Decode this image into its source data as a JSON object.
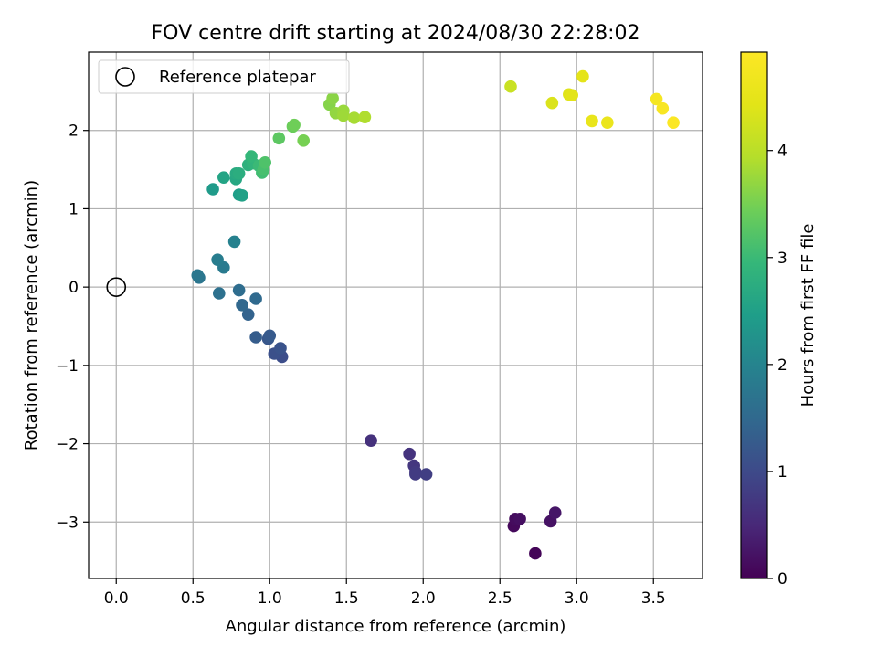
{
  "chart_data": {
    "type": "scatter",
    "title": "FOV centre drift starting at 2024/08/30 22:28:02",
    "xlabel": "Angular distance from reference (arcmin)",
    "ylabel": "Rotation from reference (arcmin)",
    "xlim": [
      -0.18,
      3.82
    ],
    "ylim": [
      -3.72,
      3.0
    ],
    "xticks": [
      0.0,
      0.5,
      1.0,
      1.5,
      2.0,
      2.5,
      3.0,
      3.5
    ],
    "xtick_labels": [
      "0.0",
      "0.5",
      "1.0",
      "1.5",
      "2.0",
      "2.5",
      "3.0",
      "3.5"
    ],
    "yticks": [
      -3,
      -2,
      -1,
      0,
      1,
      2
    ],
    "ytick_labels": [
      "−3",
      "−2",
      "−1",
      "0",
      "1",
      "2"
    ],
    "grid": true,
    "legend": {
      "location": "upper-left",
      "entries": [
        "Reference platepar"
      ]
    },
    "reference_point": {
      "name": "Reference platepar",
      "x": 0.0,
      "y": 0.0
    },
    "colorbar": {
      "label": "Hours from first FF file",
      "colormap": "viridis",
      "range": [
        0,
        4.92
      ],
      "ticks": [
        0,
        1,
        2,
        3,
        4
      ],
      "tick_labels": [
        "0",
        "1",
        "2",
        "3",
        "4"
      ]
    },
    "series": [
      {
        "name": "FOV centre drift",
        "points": [
          {
            "x": 2.73,
            "y": -3.4,
            "c": 0.05
          },
          {
            "x": 2.59,
            "y": -3.05,
            "c": 0.1
          },
          {
            "x": 2.6,
            "y": -2.96,
            "c": 0.14
          },
          {
            "x": 2.63,
            "y": -2.96,
            "c": 0.18
          },
          {
            "x": 2.83,
            "y": -2.99,
            "c": 0.22
          },
          {
            "x": 2.86,
            "y": -2.88,
            "c": 0.26
          },
          {
            "x": 1.66,
            "y": -1.96,
            "c": 0.62
          },
          {
            "x": 1.91,
            "y": -2.13,
            "c": 0.66
          },
          {
            "x": 1.94,
            "y": -2.28,
            "c": 0.7
          },
          {
            "x": 1.95,
            "y": -2.36,
            "c": 0.74
          },
          {
            "x": 1.95,
            "y": -2.39,
            "c": 0.78
          },
          {
            "x": 2.02,
            "y": -2.39,
            "c": 0.82
          },
          {
            "x": 1.08,
            "y": -0.89,
            "c": 1.05
          },
          {
            "x": 1.03,
            "y": -0.85,
            "c": 1.1
          },
          {
            "x": 1.07,
            "y": -0.78,
            "c": 1.15
          },
          {
            "x": 0.99,
            "y": -0.66,
            "c": 1.2
          },
          {
            "x": 1.0,
            "y": -0.62,
            "c": 1.25
          },
          {
            "x": 0.91,
            "y": -0.64,
            "c": 1.3
          },
          {
            "x": 0.86,
            "y": -0.35,
            "c": 1.4
          },
          {
            "x": 0.82,
            "y": -0.23,
            "c": 1.48
          },
          {
            "x": 0.91,
            "y": -0.15,
            "c": 1.52
          },
          {
            "x": 0.8,
            "y": -0.04,
            "c": 1.58
          },
          {
            "x": 0.67,
            "y": -0.08,
            "c": 1.65
          },
          {
            "x": 0.54,
            "y": 0.12,
            "c": 1.72
          },
          {
            "x": 0.53,
            "y": 0.15,
            "c": 1.76
          },
          {
            "x": 0.7,
            "y": 0.25,
            "c": 1.82
          },
          {
            "x": 0.66,
            "y": 0.35,
            "c": 1.88
          },
          {
            "x": 0.77,
            "y": 0.58,
            "c": 1.95
          },
          {
            "x": 0.63,
            "y": 1.25,
            "c": 2.4
          },
          {
            "x": 0.8,
            "y": 1.18,
            "c": 2.46
          },
          {
            "x": 0.82,
            "y": 1.17,
            "c": 2.52
          },
          {
            "x": 0.7,
            "y": 1.4,
            "c": 2.58
          },
          {
            "x": 0.78,
            "y": 1.38,
            "c": 2.64
          },
          {
            "x": 0.78,
            "y": 1.45,
            "c": 2.7
          },
          {
            "x": 0.8,
            "y": 1.45,
            "c": 2.76
          },
          {
            "x": 0.86,
            "y": 1.56,
            "c": 2.82
          },
          {
            "x": 0.89,
            "y": 1.58,
            "c": 2.88
          },
          {
            "x": 0.88,
            "y": 1.67,
            "c": 2.94
          },
          {
            "x": 0.93,
            "y": 1.55,
            "c": 3.0
          },
          {
            "x": 0.95,
            "y": 1.46,
            "c": 3.06
          },
          {
            "x": 0.96,
            "y": 1.5,
            "c": 3.12
          },
          {
            "x": 0.97,
            "y": 1.59,
            "c": 3.18
          },
          {
            "x": 1.06,
            "y": 1.9,
            "c": 3.3
          },
          {
            "x": 1.15,
            "y": 2.05,
            "c": 3.4
          },
          {
            "x": 1.16,
            "y": 2.07,
            "c": 3.44
          },
          {
            "x": 1.22,
            "y": 1.87,
            "c": 3.5
          },
          {
            "x": 1.39,
            "y": 2.33,
            "c": 3.6
          },
          {
            "x": 1.41,
            "y": 2.41,
            "c": 3.64
          },
          {
            "x": 1.43,
            "y": 2.22,
            "c": 3.7
          },
          {
            "x": 1.48,
            "y": 2.25,
            "c": 3.74
          },
          {
            "x": 1.48,
            "y": 2.19,
            "c": 3.78
          },
          {
            "x": 1.55,
            "y": 2.16,
            "c": 3.84
          },
          {
            "x": 1.62,
            "y": 2.17,
            "c": 3.9
          },
          {
            "x": 2.57,
            "y": 2.56,
            "c": 4.15
          },
          {
            "x": 2.84,
            "y": 2.35,
            "c": 4.35
          },
          {
            "x": 2.95,
            "y": 2.46,
            "c": 4.4
          },
          {
            "x": 2.97,
            "y": 2.45,
            "c": 4.45
          },
          {
            "x": 3.04,
            "y": 2.69,
            "c": 4.48
          },
          {
            "x": 3.1,
            "y": 2.12,
            "c": 4.55
          },
          {
            "x": 3.2,
            "y": 2.1,
            "c": 4.6
          },
          {
            "x": 3.52,
            "y": 2.4,
            "c": 4.78
          },
          {
            "x": 3.56,
            "y": 2.28,
            "c": 4.82
          },
          {
            "x": 3.63,
            "y": 2.1,
            "c": 4.88
          }
        ]
      }
    ]
  }
}
